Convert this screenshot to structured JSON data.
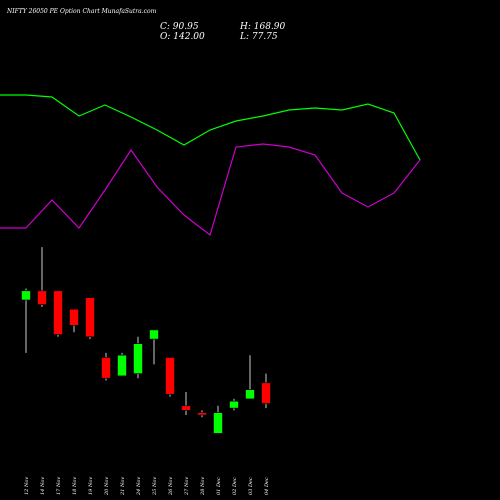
{
  "header": {
    "title": "NIFTY 26050  PE Option  Chart MunafaSutra.com",
    "close": "C: 90.95",
    "high": "H: 168.90",
    "open": "O: 142.00",
    "low": "L: 77.75"
  },
  "colors": {
    "background": "#000000",
    "up": "#00ff00",
    "down": "#ff0000",
    "line_green": "#00ff00",
    "line_magenta": "#cc00cc",
    "wick": "#ffffff"
  },
  "chart_data": [
    {
      "type": "candlestick",
      "categories": [
        "12 Nov",
        "14 Nov",
        "17 Nov",
        "18 Nov",
        "19 Nov",
        "20 Nov",
        "21 Nov",
        "24 Nov",
        "25 Nov",
        "26 Nov",
        "27 Nov",
        "28 Nov",
        "01 Dec",
        "02 Dec",
        "03 Dec",
        "04 Dec"
      ],
      "candles": [
        {
          "o": 113,
          "h": 118,
          "l": 90,
          "c": 117
        },
        {
          "o": 117,
          "h": 136,
          "l": 110,
          "c": 111
        },
        {
          "o": 117,
          "h": 117,
          "l": 97,
          "c": 98
        },
        {
          "o": 109,
          "h": 109,
          "l": 99,
          "c": 102
        },
        {
          "o": 114,
          "h": 114,
          "l": 96,
          "c": 97
        },
        {
          "o": 88,
          "h": 90,
          "l": 78,
          "c": 79
        },
        {
          "o": 80,
          "h": 90,
          "l": 80,
          "c": 89
        },
        {
          "o": 81,
          "h": 97,
          "l": 79,
          "c": 94
        },
        {
          "o": 96,
          "h": 100,
          "l": 85,
          "c": 100
        },
        {
          "o": 88,
          "h": 88,
          "l": 71,
          "c": 72
        },
        {
          "o": 67,
          "h": 73,
          "l": 63,
          "c": 65
        },
        {
          "o": 64,
          "h": 65,
          "l": 62,
          "c": 63
        },
        {
          "o": 55,
          "h": 67,
          "l": 55,
          "c": 64
        },
        {
          "o": 66,
          "h": 70,
          "l": 65,
          "c": 69
        },
        {
          "o": 70,
          "h": 89,
          "l": 70,
          "c": 74
        },
        {
          "o": 77,
          "h": 81,
          "l": 66,
          "c": 68
        }
      ]
    },
    {
      "type": "line",
      "categories": [
        "12 Nov",
        "14 Nov",
        "17 Nov",
        "18 Nov",
        "19 Nov",
        "20 Nov",
        "21 Nov",
        "24 Nov",
        "25 Nov",
        "26 Nov",
        "27 Nov",
        "28 Nov",
        "01 Dec",
        "02 Dec",
        "03 Dec",
        "04 Dec"
      ],
      "series": [
        {
          "values": [
            95,
            95,
            97,
            116,
            105,
            117,
            130,
            145,
            130,
            121,
            116,
            110,
            108,
            110,
            104,
            113
          ]
        },
        {
          "values": [
            228,
            228,
            200,
            228,
            190,
            150,
            187,
            215,
            235,
            147,
            144,
            147,
            155,
            193,
            207,
            193
          ]
        }
      ],
      "ylim": [
        80,
        250
      ]
    }
  ]
}
